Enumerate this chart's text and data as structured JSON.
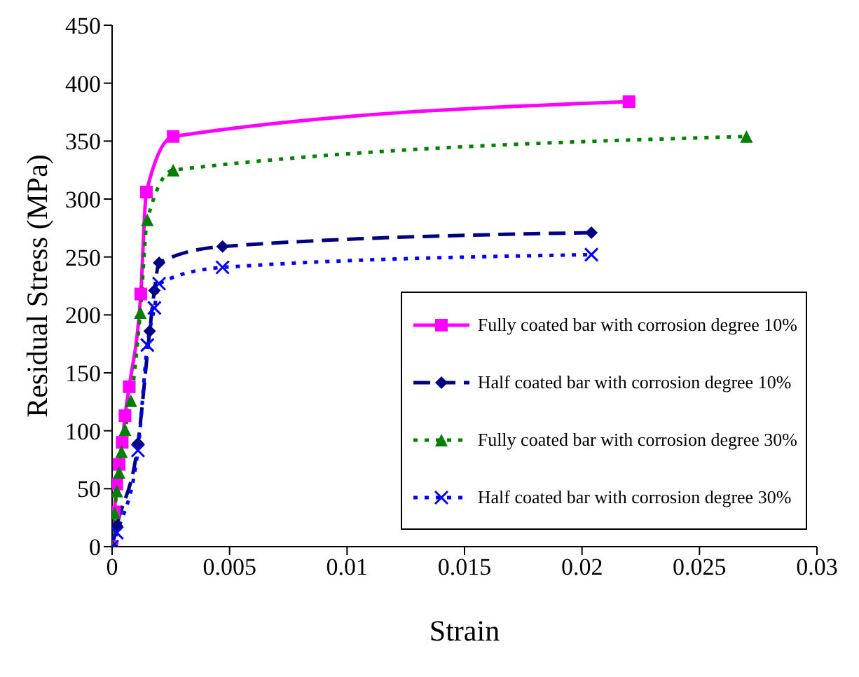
{
  "chart_data": {
    "type": "line",
    "xlabel": "Strain",
    "ylabel": "Residual Stress (MPa)",
    "xlim": [
      0,
      0.03
    ],
    "xticks": [
      0,
      0.005,
      0.01,
      0.015,
      0.02,
      0.025,
      0.03
    ],
    "ylim": [
      0,
      450
    ],
    "yticks": [
      0,
      50,
      100,
      150,
      200,
      250,
      300,
      350,
      400,
      450
    ],
    "grid": false,
    "legend": "bottom right",
    "series": [
      {
        "name": "Fully coated bar with corrosion degree 10%",
        "color": "#ff00ff",
        "marker": "square",
        "line_style": "solid",
        "x": [
          0,
          0.0001,
          0.0002,
          0.0003,
          0.00043,
          0.00055,
          0.00073,
          0.00122,
          0.00146,
          0.0026,
          0.022
        ],
        "values": [
          0,
          30,
          54,
          71,
          90,
          113,
          138,
          218,
          306,
          354,
          384
        ]
      },
      {
        "name": "Half coated bar with corrosion degree 10%",
        "color": "#000080",
        "marker": "diamond",
        "line_style": "dashed",
        "x": [
          0,
          0.0002,
          0.0011,
          0.0016,
          0.0018,
          0.002,
          0.0047,
          0.0204
        ],
        "values": [
          0,
          18,
          89,
          186,
          221,
          245,
          259,
          271
        ]
      },
      {
        "name": "Fully coated bar with corrosion degree 30%",
        "color": "#008000",
        "marker": "triangle",
        "line_style": "dotted",
        "x": [
          0,
          0.0001,
          0.0002,
          0.0003,
          0.0004,
          0.00055,
          0.0008,
          0.0012,
          0.0015,
          0.0026,
          0.027
        ],
        "values": [
          0,
          29,
          48,
          64,
          82,
          101,
          126,
          202,
          282,
          325,
          354
        ]
      },
      {
        "name": "Half coated bar with corrosion degree 30%",
        "color": "#0000ff",
        "marker": "cross",
        "line_style": "dotted",
        "x": [
          0,
          0.0002,
          0.0011,
          0.0015,
          0.0018,
          0.002,
          0.0047,
          0.0204
        ],
        "values": [
          0,
          12,
          83,
          174,
          206,
          227,
          241,
          252
        ]
      }
    ]
  }
}
